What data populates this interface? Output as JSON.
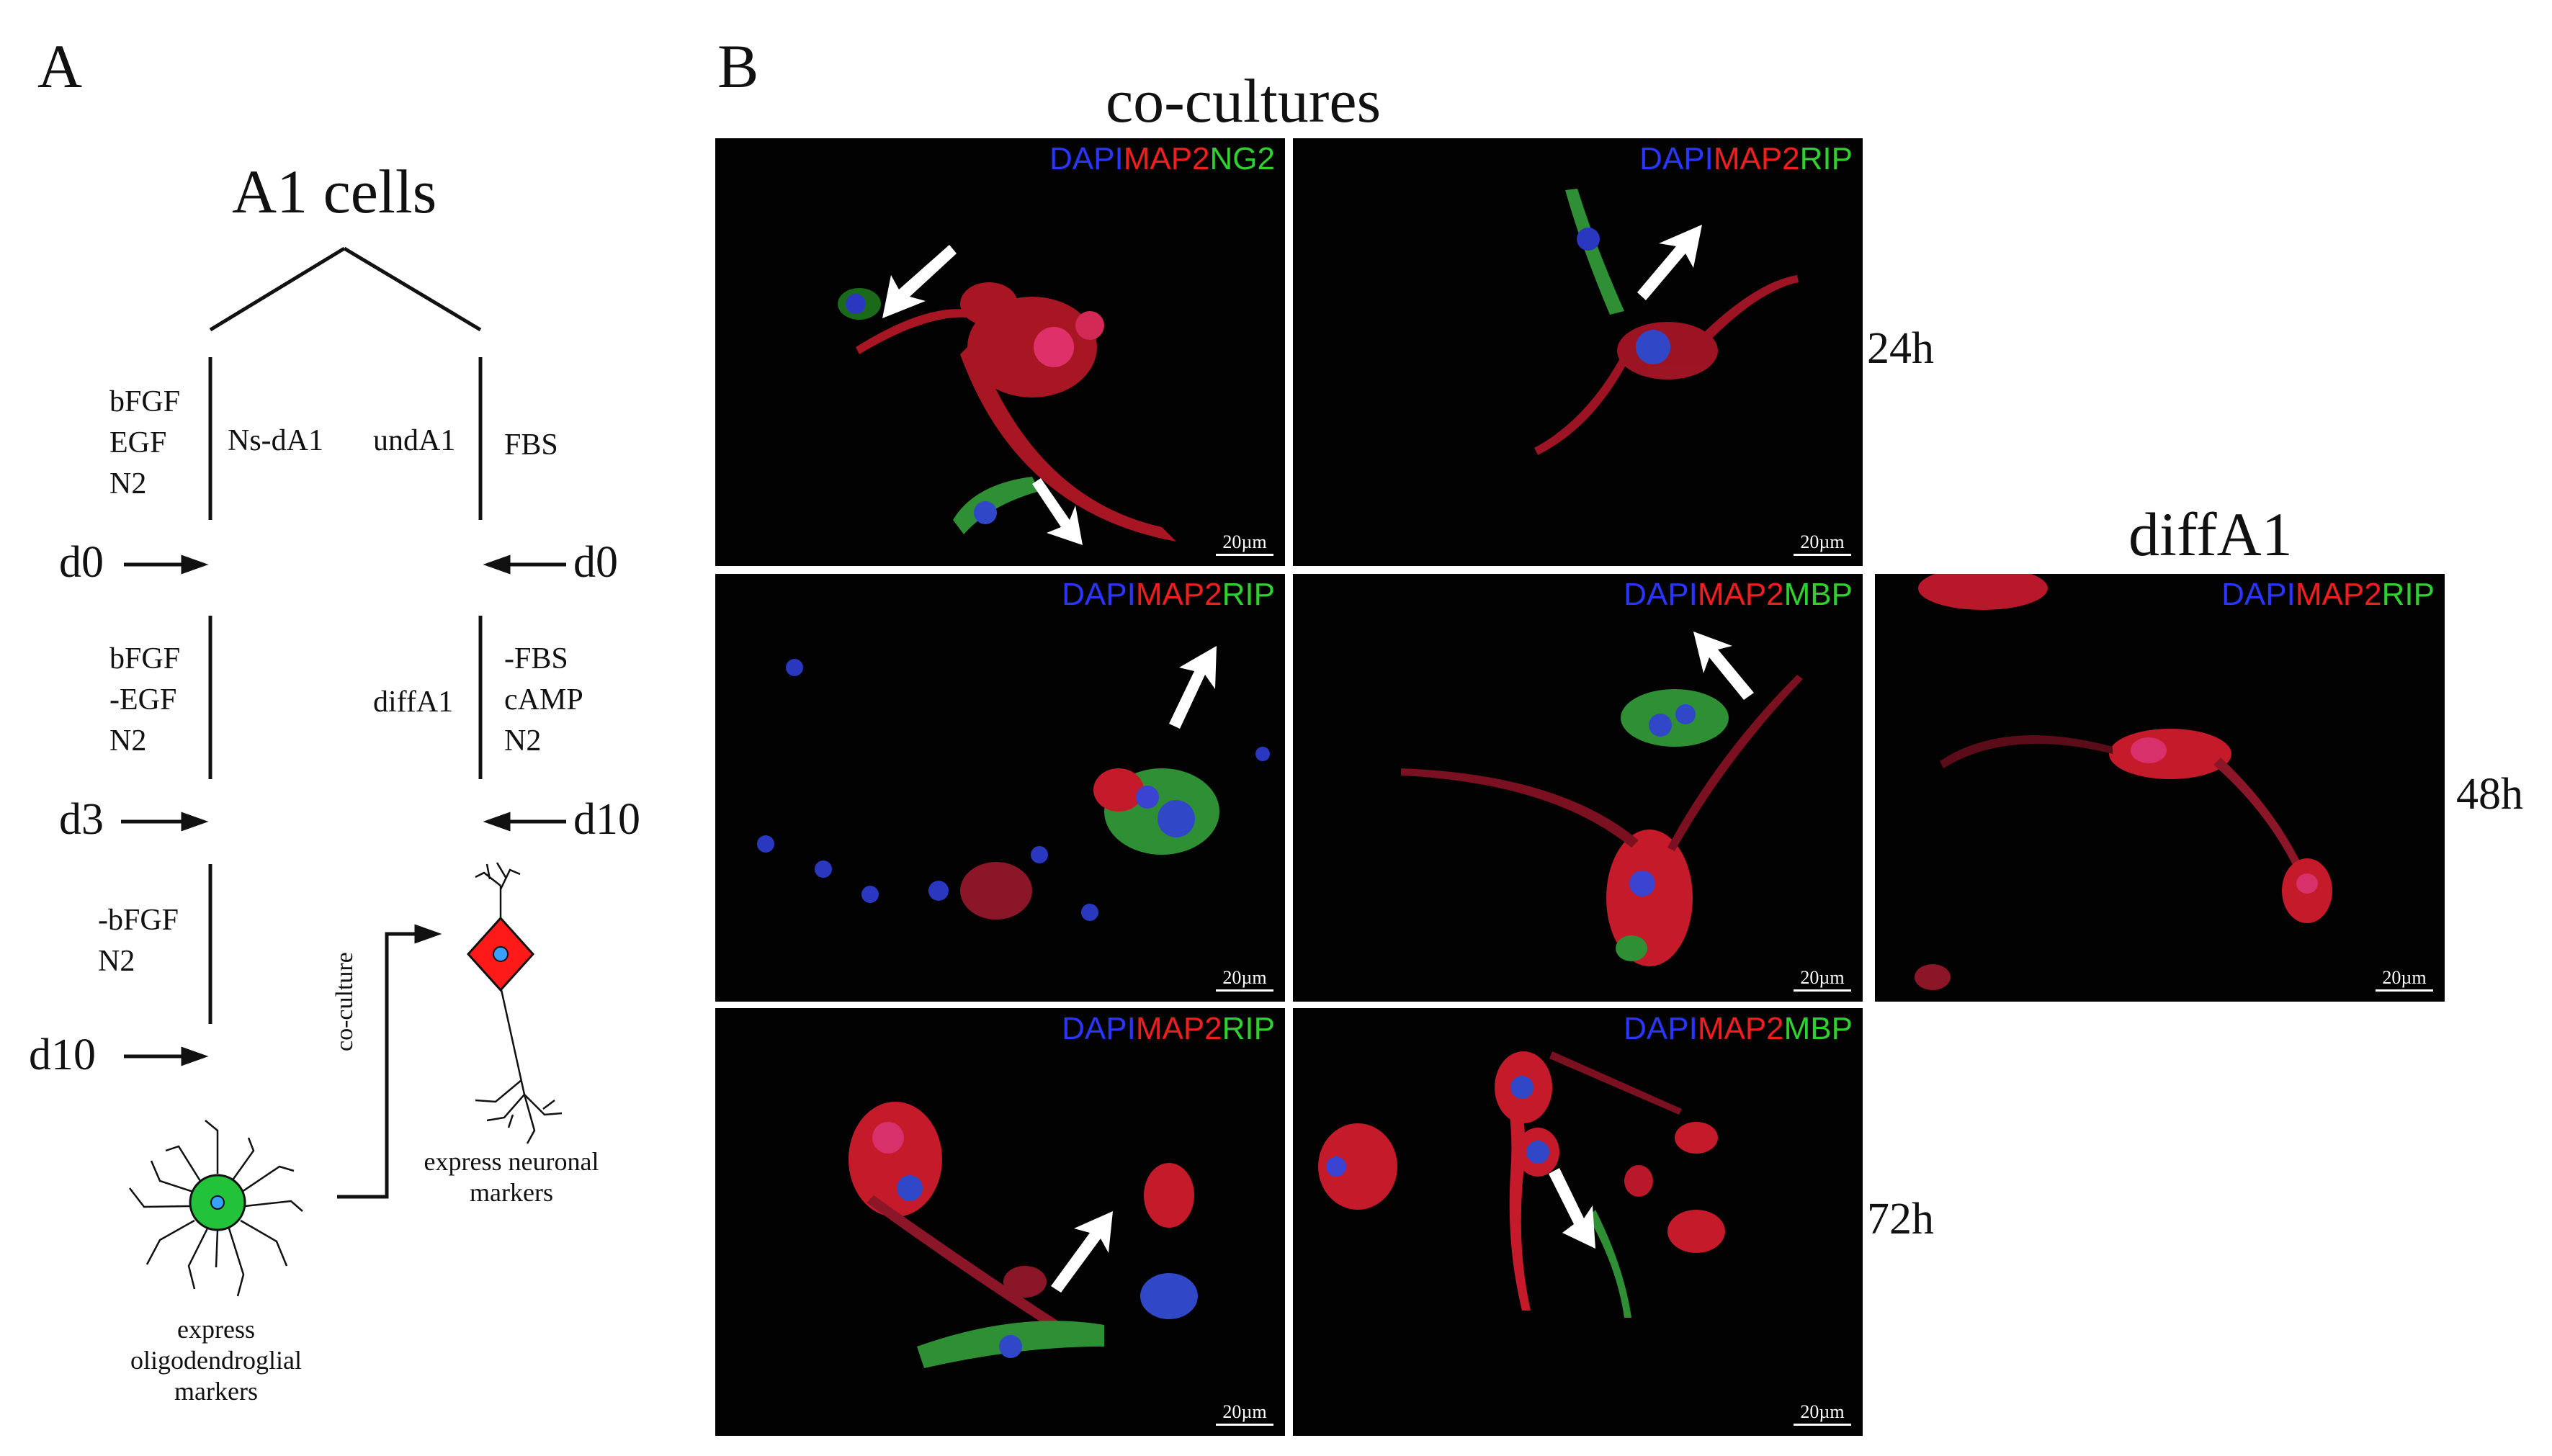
{
  "panel_a": {
    "letter": "A",
    "title": "A1 cells",
    "left_col": {
      "stage1": [
        "bFGF",
        "EGF",
        "N2"
      ],
      "stage2": [
        "bFGF",
        "-EGF",
        "N2"
      ],
      "stage3": [
        "-bFGF",
        "N2"
      ],
      "name": "Ns-dA1",
      "days": [
        "d0",
        "d3",
        "d10"
      ]
    },
    "right_col": {
      "stage1": [
        "FBS"
      ],
      "stage2": [
        "-FBS",
        "cAMP",
        "N2"
      ],
      "name1": "undA1",
      "name2": "diffA1",
      "days": [
        "d0",
        "d10"
      ]
    },
    "coculture_label": "co-culture",
    "neuron_caption": "express neuronal markers",
    "oligo_caption": "express oligodendroglial markers",
    "colors": {
      "neuron_body": "#ff1a1a",
      "oligo_body": "#22c33a",
      "nucleus": "#3aa0ff"
    }
  },
  "panel_b": {
    "letter": "B",
    "cocultures_title": "co-cultures",
    "diffa1_title": "diffA1",
    "time_labels": [
      "24h",
      "48h",
      "72h"
    ],
    "scale_label": "20µm",
    "images": [
      {
        "stain": [
          "DAPI",
          "MAP2",
          "NG2"
        ]
      },
      {
        "stain": [
          "DAPI",
          "MAP2",
          "RIP"
        ]
      },
      {
        "stain": [
          "DAPI",
          "MAP2",
          "RIP"
        ]
      },
      {
        "stain": [
          "DAPI",
          "MAP2",
          "MBP"
        ]
      },
      {
        "stain": [
          "DAPI",
          "MAP2",
          "RIP"
        ]
      },
      {
        "stain": [
          "DAPI",
          "MAP2",
          "RIP"
        ]
      },
      {
        "stain": [
          "DAPI",
          "MAP2",
          "MBP"
        ]
      }
    ],
    "colors": {
      "dapi": "#2a36ff",
      "map2": "#f01e1e",
      "green": "#2fd02f"
    }
  }
}
